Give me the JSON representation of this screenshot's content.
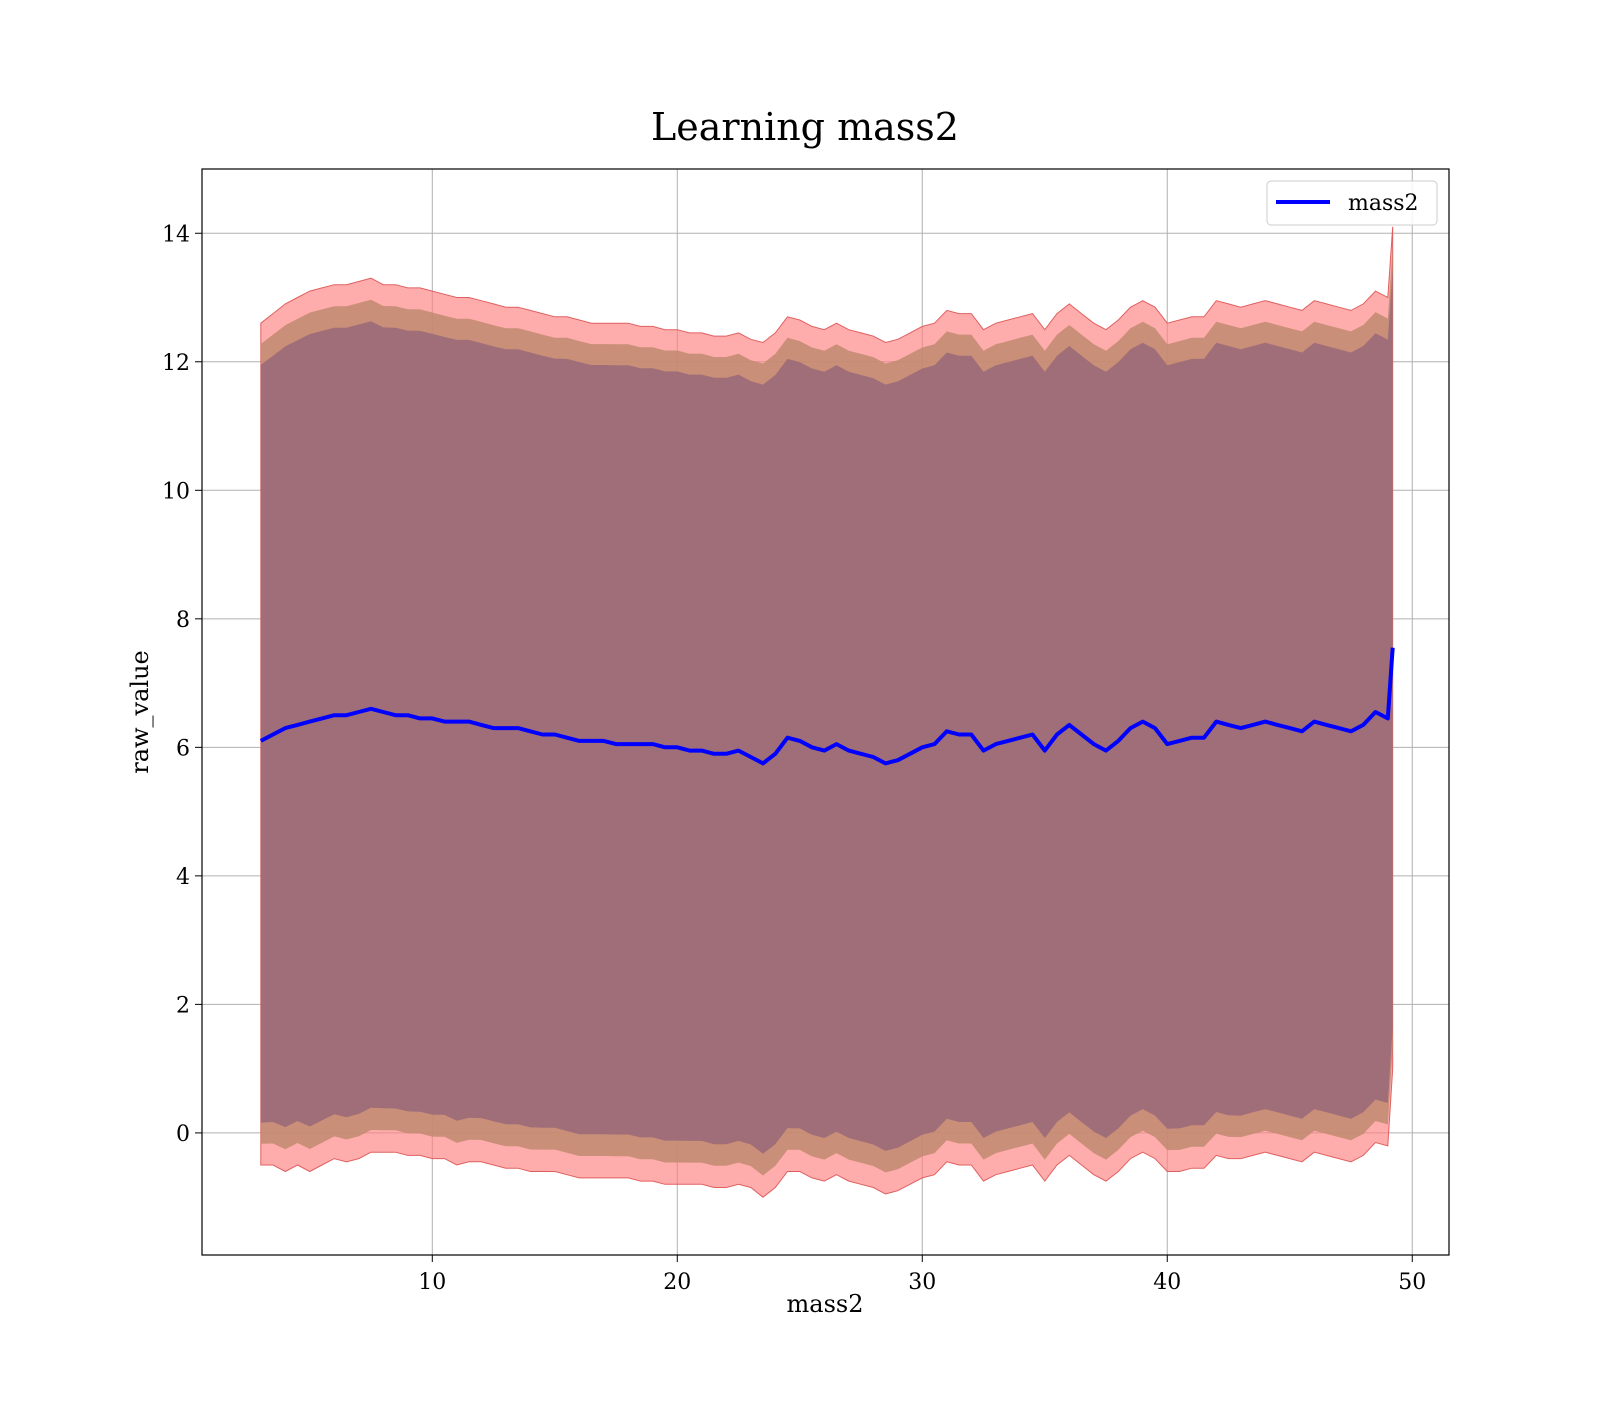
{
  "chart_data": {
    "type": "area",
    "title": "Learning mass2",
    "xlabel": "mass2",
    "ylabel": "raw_value",
    "xlim": [
      0.6,
      51.5
    ],
    "ylim": [
      -1.9,
      15.0
    ],
    "xticks": [
      10,
      20,
      30,
      40,
      50
    ],
    "yticks": [
      0,
      2,
      4,
      6,
      8,
      10,
      12,
      14
    ],
    "grid": true,
    "legend": {
      "placement": "top-right",
      "entries": [
        "mass2"
      ]
    },
    "colors": {
      "line": "#0000ff",
      "band_outer": "#ff8080",
      "band_mid": "#c08a6e",
      "band_inner": "#a06e78"
    },
    "series": [
      {
        "name": "mass2",
        "x": [
          3.0,
          3.5,
          4.0,
          4.5,
          5.0,
          5.5,
          6.0,
          6.5,
          7.0,
          7.5,
          8.0,
          8.5,
          9.0,
          9.5,
          10.0,
          10.5,
          11.0,
          11.5,
          12.0,
          12.5,
          13.0,
          13.5,
          14.0,
          14.5,
          15.0,
          15.5,
          16.0,
          16.5,
          17.0,
          17.5,
          18.0,
          18.5,
          19.0,
          19.5,
          20.0,
          20.5,
          21.0,
          21.5,
          22.0,
          22.5,
          23.0,
          23.5,
          24.0,
          24.5,
          25.0,
          25.5,
          26.0,
          26.5,
          27.0,
          27.5,
          28.0,
          28.5,
          29.0,
          29.5,
          30.0,
          30.5,
          31.0,
          31.5,
          32.0,
          32.5,
          33.0,
          33.5,
          34.0,
          34.5,
          35.0,
          35.5,
          36.0,
          36.5,
          37.0,
          37.5,
          38.0,
          38.5,
          39.0,
          39.5,
          40.0,
          40.5,
          41.0,
          41.5,
          42.0,
          42.5,
          43.0,
          43.5,
          44.0,
          44.5,
          45.0,
          45.5,
          46.0,
          46.5,
          47.0,
          47.5,
          48.0,
          48.5,
          49.0,
          49.2
        ],
        "y": [
          6.1,
          6.2,
          6.3,
          6.35,
          6.4,
          6.45,
          6.5,
          6.5,
          6.55,
          6.6,
          6.55,
          6.5,
          6.5,
          6.45,
          6.45,
          6.4,
          6.4,
          6.4,
          6.35,
          6.3,
          6.3,
          6.3,
          6.25,
          6.2,
          6.2,
          6.15,
          6.1,
          6.1,
          6.1,
          6.05,
          6.05,
          6.05,
          6.05,
          6.0,
          6.0,
          5.95,
          5.95,
          5.9,
          5.9,
          5.95,
          5.85,
          5.75,
          5.9,
          6.15,
          6.1,
          6.0,
          5.95,
          6.05,
          5.95,
          5.9,
          5.85,
          5.75,
          5.8,
          5.9,
          6.0,
          6.05,
          6.25,
          6.2,
          6.2,
          5.95,
          6.05,
          6.1,
          6.15,
          6.2,
          5.95,
          6.2,
          6.35,
          6.2,
          6.05,
          5.95,
          6.1,
          6.3,
          6.4,
          6.3,
          6.05,
          6.1,
          6.15,
          6.15,
          6.4,
          6.35,
          6.3,
          6.35,
          6.4,
          6.35,
          6.3,
          6.25,
          6.4,
          6.35,
          6.3,
          6.25,
          6.35,
          6.55,
          6.45,
          7.55
        ]
      }
    ],
    "bands": [
      {
        "x": [
          3.0,
          3.5,
          4.0,
          4.5,
          5.0,
          5.5,
          6.0,
          6.5,
          7.0,
          7.5,
          8.0,
          8.5,
          9.0,
          9.5,
          10.0,
          10.5,
          11.0,
          11.5,
          12.0,
          12.5,
          13.0,
          13.5,
          14.0,
          14.5,
          15.0,
          15.5,
          16.0,
          16.5,
          17.0,
          17.5,
          18.0,
          18.5,
          19.0,
          19.5,
          20.0,
          20.5,
          21.0,
          21.5,
          22.0,
          22.5,
          23.0,
          23.5,
          24.0,
          24.5,
          25.0,
          25.5,
          26.0,
          26.5,
          27.0,
          27.5,
          28.0,
          28.5,
          29.0,
          29.5,
          30.0,
          30.5,
          31.0,
          31.5,
          32.0,
          32.5,
          33.0,
          33.5,
          34.0,
          34.5,
          35.0,
          35.5,
          36.0,
          36.5,
          37.0,
          37.5,
          38.0,
          38.5,
          39.0,
          39.5,
          40.0,
          40.5,
          41.0,
          41.5,
          42.0,
          42.5,
          43.0,
          43.5,
          44.0,
          44.5,
          45.0,
          45.5,
          46.0,
          46.5,
          47.0,
          47.5,
          48.0,
          48.5,
          49.0,
          49.2
        ],
        "y_lower": [
          -0.5,
          -0.5,
          -0.6,
          -0.5,
          -0.6,
          -0.5,
          -0.4,
          -0.45,
          -0.4,
          -0.3,
          -0.3,
          -0.3,
          -0.35,
          -0.35,
          -0.4,
          -0.4,
          -0.5,
          -0.45,
          -0.45,
          -0.5,
          -0.55,
          -0.55,
          -0.6,
          -0.6,
          -0.6,
          -0.65,
          -0.7,
          -0.7,
          -0.7,
          -0.7,
          -0.7,
          -0.75,
          -0.75,
          -0.8,
          -0.8,
          -0.8,
          -0.8,
          -0.85,
          -0.85,
          -0.8,
          -0.85,
          -1.0,
          -0.85,
          -0.6,
          -0.6,
          -0.7,
          -0.75,
          -0.65,
          -0.75,
          -0.8,
          -0.85,
          -0.95,
          -0.9,
          -0.8,
          -0.7,
          -0.65,
          -0.45,
          -0.5,
          -0.5,
          -0.75,
          -0.65,
          -0.6,
          -0.55,
          -0.5,
          -0.75,
          -0.5,
          -0.35,
          -0.5,
          -0.65,
          -0.75,
          -0.6,
          -0.4,
          -0.3,
          -0.4,
          -0.6,
          -0.6,
          -0.55,
          -0.55,
          -0.35,
          -0.4,
          -0.4,
          -0.35,
          -0.3,
          -0.35,
          -0.4,
          -0.45,
          -0.3,
          -0.35,
          -0.4,
          -0.45,
          -0.35,
          -0.15,
          -0.2,
          1.0
        ],
        "y_upper": [
          12.6,
          12.75,
          12.9,
          13.0,
          13.1,
          13.15,
          13.2,
          13.2,
          13.25,
          13.3,
          13.2,
          13.2,
          13.15,
          13.15,
          13.1,
          13.05,
          13.0,
          13.0,
          12.95,
          12.9,
          12.85,
          12.85,
          12.8,
          12.75,
          12.7,
          12.7,
          12.65,
          12.6,
          12.6,
          12.6,
          12.6,
          12.55,
          12.55,
          12.5,
          12.5,
          12.45,
          12.45,
          12.4,
          12.4,
          12.45,
          12.35,
          12.3,
          12.45,
          12.7,
          12.65,
          12.55,
          12.5,
          12.6,
          12.5,
          12.45,
          12.4,
          12.3,
          12.35,
          12.45,
          12.55,
          12.6,
          12.8,
          12.75,
          12.75,
          12.5,
          12.6,
          12.65,
          12.7,
          12.75,
          12.5,
          12.75,
          12.9,
          12.75,
          12.6,
          12.5,
          12.65,
          12.85,
          12.95,
          12.85,
          12.6,
          12.65,
          12.7,
          12.7,
          12.95,
          12.9,
          12.85,
          12.9,
          12.95,
          12.9,
          12.85,
          12.8,
          12.95,
          12.9,
          12.85,
          12.8,
          12.9,
          13.1,
          13.0,
          14.1
        ]
      }
    ]
  }
}
